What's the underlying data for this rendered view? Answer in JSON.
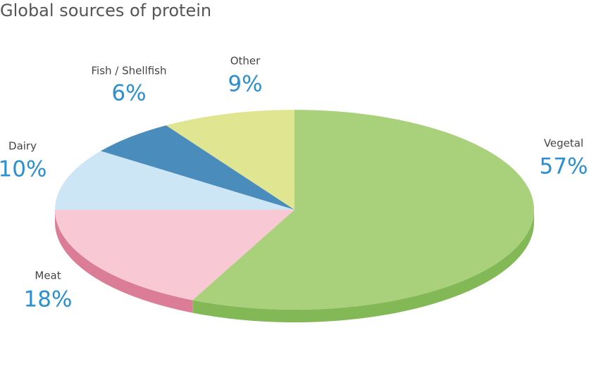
{
  "chart_data": {
    "type": "pie",
    "title": "Global sources of protein",
    "categories": [
      "Vegetal",
      "Meat",
      "Dairy",
      "Fish / Shellfish",
      "Other"
    ],
    "values": [
      57,
      18,
      10,
      6,
      9
    ],
    "value_labels": [
      "57%",
      "18%",
      "10%",
      "6%",
      "9%"
    ],
    "colors": [
      "#a9d17b",
      "#f8c9d4",
      "#cde6f6",
      "#4a8dbd",
      "#dfe590"
    ],
    "side_colors": [
      "#82b856",
      "#db7d97",
      "#a9cbe2",
      "#35709b",
      "#bcc36c"
    ]
  }
}
